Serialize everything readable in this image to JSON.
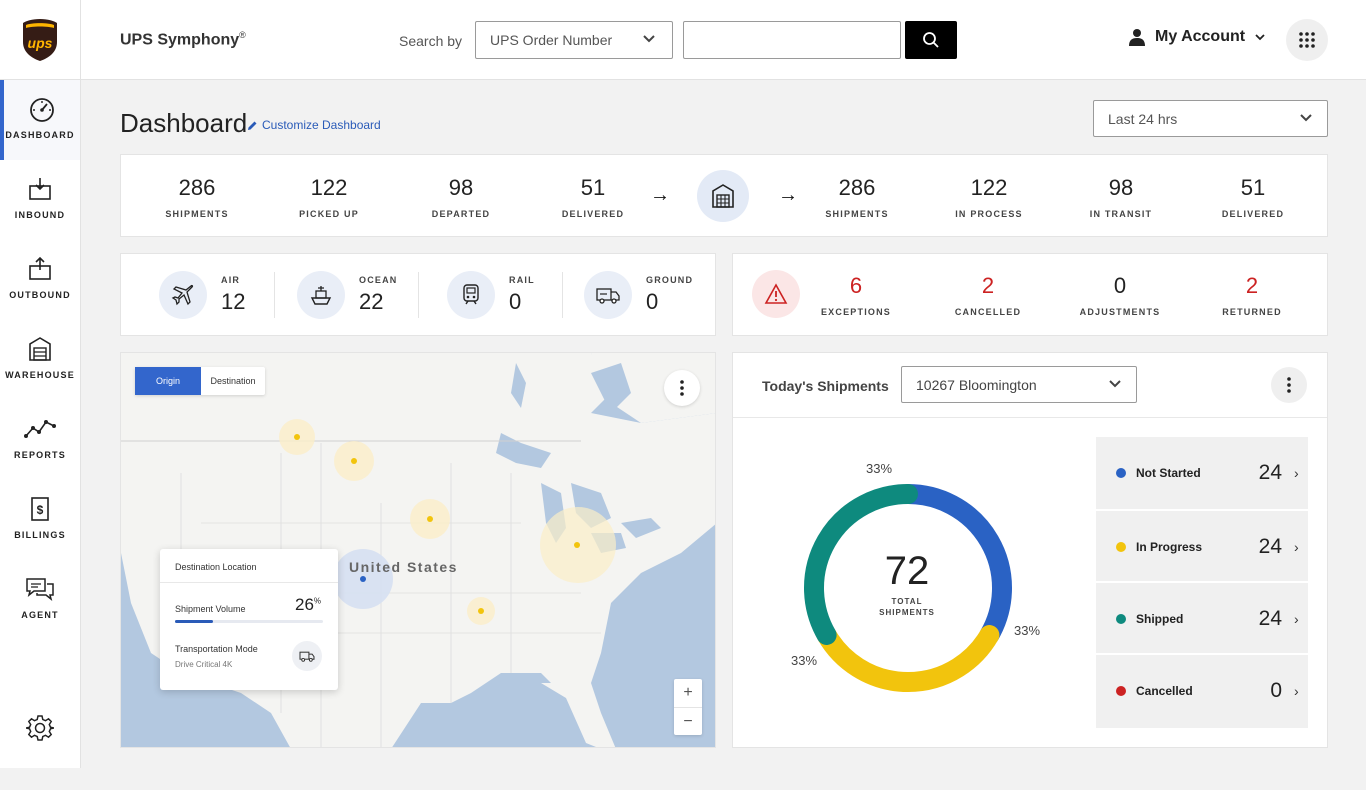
{
  "header": {
    "app_title": "UPS Symphony",
    "app_title_mark": "®",
    "search_label": "Search by",
    "search_type": "UPS Order Number",
    "search_value": "",
    "account_label": "My Account"
  },
  "sidebar": {
    "items": [
      {
        "label": "DASHBOARD",
        "icon": "gauge-icon",
        "active": true
      },
      {
        "label": "INBOUND",
        "icon": "inbound-box-icon"
      },
      {
        "label": "OUTBOUND",
        "icon": "outbound-box-icon"
      },
      {
        "label": "WAREHOUSE",
        "icon": "warehouse-icon"
      },
      {
        "label": "REPORTS",
        "icon": "line-chart-icon"
      },
      {
        "label": "BILLINGS",
        "icon": "billing-icon"
      },
      {
        "label": "AGENT",
        "icon": "chat-bubbles-icon"
      }
    ]
  },
  "page": {
    "title": "Dashboard",
    "customize_label": "Customize Dashboard",
    "time_range": "Last 24 hrs"
  },
  "flow": {
    "inbound": [
      {
        "value": "286",
        "label": "SHIPMENTS"
      },
      {
        "value": "122",
        "label": "PICKED UP"
      },
      {
        "value": "98",
        "label": "DEPARTED"
      },
      {
        "value": "51",
        "label": "DELIVERED"
      }
    ],
    "outbound": [
      {
        "value": "286",
        "label": "SHIPMENTS"
      },
      {
        "value": "122",
        "label": "IN PROCESS"
      },
      {
        "value": "98",
        "label": "IN TRANSIT"
      },
      {
        "value": "51",
        "label": "DELIVERED"
      }
    ],
    "arrow": "→"
  },
  "modes": [
    {
      "label": "AIR",
      "value": "12",
      "icon": "airplane-icon"
    },
    {
      "label": "OCEAN",
      "value": "22",
      "icon": "ship-icon"
    },
    {
      "label": "RAIL",
      "value": "0",
      "icon": "train-icon"
    },
    {
      "label": "GROUND",
      "value": "0",
      "icon": "truck-icon"
    }
  ],
  "issues": [
    {
      "label": "EXCEPTIONS",
      "value": "6",
      "alert": true
    },
    {
      "label": "CANCELLED",
      "value": "2",
      "alert": true
    },
    {
      "label": "ADJUSTMENTS",
      "value": "0",
      "alert": false
    },
    {
      "label": "RETURNED",
      "value": "2",
      "alert": true
    }
  ],
  "map": {
    "toggle": [
      "Origin",
      "Destination"
    ],
    "active_toggle": "Origin",
    "country_label": "United States",
    "zoom_in": "+",
    "zoom_out": "−",
    "popup": {
      "title": "Destination Location",
      "volume_label": "Shipment Volume",
      "volume_value": "26",
      "volume_unit": "%",
      "volume_fraction": 0.26,
      "mode_label": "Transportation Mode",
      "mode_value": "Drive Critical 4K"
    }
  },
  "todays_shipments": {
    "title": "Today's Shipments",
    "location": "10267 Bloomington",
    "total": "72",
    "total_label_line1": "TOTAL",
    "total_label_line2": "SHIPMENTS",
    "percent_labels": [
      "33%",
      "33%",
      "33%"
    ],
    "segments": [
      {
        "name": "Not Started",
        "value": 24,
        "display": "24",
        "color": "#2a62c4"
      },
      {
        "name": "In Progress",
        "value": 24,
        "display": "24",
        "color": "#f2c40d"
      },
      {
        "name": "Shipped",
        "value": 24,
        "display": "24",
        "color": "#0e8a7e"
      },
      {
        "name": "Cancelled",
        "value": 0,
        "display": "0",
        "color": "#cc2222"
      }
    ]
  },
  "colors": {
    "accent": "#3366cc",
    "alert": "#cc2222",
    "brand_brown": "#351c15",
    "brand_gold": "#ffb500"
  }
}
